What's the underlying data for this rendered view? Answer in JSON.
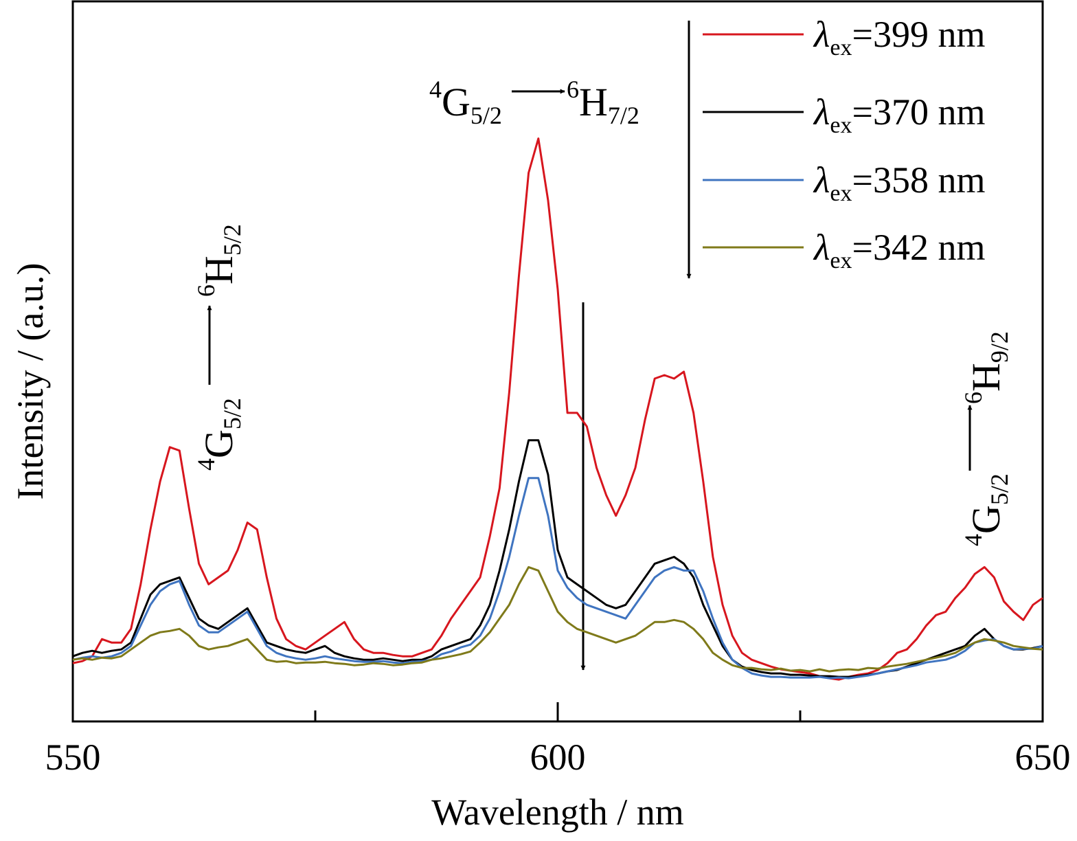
{
  "chart_data": {
    "type": "line",
    "xlabel": "Wavelength / nm",
    "ylabel": "Intensity / (a.u.)",
    "xlim": [
      550,
      650
    ],
    "xticks": [
      550,
      600,
      650
    ],
    "xminor_ticks": [
      575,
      625
    ],
    "ylim": [
      0,
      105
    ],
    "legend": "upper right",
    "x": [
      550,
      551,
      552,
      553,
      554,
      555,
      556,
      557,
      558,
      559,
      560,
      561,
      562,
      563,
      564,
      565,
      566,
      567,
      568,
      569,
      570,
      571,
      572,
      573,
      574,
      575,
      576,
      577,
      578,
      579,
      580,
      581,
      582,
      583,
      584,
      585,
      586,
      587,
      588,
      589,
      590,
      591,
      592,
      593,
      594,
      595,
      596,
      597,
      598,
      599,
      600,
      601,
      602,
      603,
      604,
      605,
      606,
      607,
      608,
      609,
      610,
      611,
      612,
      613,
      614,
      615,
      616,
      617,
      618,
      619,
      620,
      621,
      622,
      623,
      624,
      625,
      626,
      627,
      628,
      629,
      630,
      631,
      632,
      633,
      634,
      635,
      636,
      637,
      638,
      639,
      640,
      641,
      642,
      643,
      644,
      645,
      646,
      647,
      648,
      649,
      650
    ],
    "series": [
      {
        "name": "λex=399 nm",
        "color": "#d7161e",
        "values": [
          8.5,
          8.8,
          9.5,
          12,
          11.5,
          11.5,
          13.5,
          20,
          28,
          35,
          40,
          39.5,
          31,
          23,
          20,
          21,
          22,
          25,
          29,
          28,
          21,
          15,
          12,
          11,
          10.5,
          11.5,
          12.5,
          13.5,
          14.5,
          12,
          10.5,
          10,
          10,
          9.7,
          9.5,
          9.5,
          10,
          10.5,
          12.5,
          15,
          17,
          19,
          21,
          27,
          34,
          48,
          65,
          80,
          85,
          76,
          63,
          45,
          45,
          43,
          37,
          33,
          30,
          33,
          37,
          44,
          50,
          50.5,
          50,
          51,
          45,
          35,
          24,
          17,
          12.5,
          10,
          9,
          8.5,
          8,
          7.6,
          7.4,
          7.2,
          7,
          6.6,
          6.3,
          6.1,
          6.5,
          6.8,
          7,
          7.5,
          8.5,
          10,
          10.5,
          12,
          14,
          15.5,
          16,
          18,
          19.5,
          21.5,
          22.5,
          21,
          17.5,
          16,
          14.8,
          17,
          18
        ]
      },
      {
        "name": "λex=370 nm",
        "color": "#000000",
        "values": [
          9.5,
          10,
          10.3,
          10,
          10.3,
          10.5,
          11.5,
          15,
          18.5,
          20,
          20.5,
          21,
          18,
          15,
          14,
          13.5,
          14.5,
          15.5,
          16.5,
          14,
          11.5,
          11,
          10.5,
          10.2,
          10,
          10.5,
          11,
          10,
          9.5,
          9.2,
          9,
          9,
          9.2,
          9,
          8.8,
          9,
          9,
          9.5,
          10.5,
          11,
          11.5,
          12,
          14,
          17,
          22,
          28,
          35,
          41,
          41,
          36,
          25,
          21,
          20,
          19,
          18,
          17,
          16.5,
          17,
          19,
          21,
          23,
          23.5,
          24,
          23,
          21,
          17,
          14,
          11,
          9,
          8,
          7.5,
          7.2,
          7,
          7,
          6.8,
          6.8,
          6.7,
          6.6,
          6.6,
          6.5,
          6.5,
          6.6,
          6.8,
          7,
          7.3,
          7.5,
          8,
          8.5,
          9,
          9.5,
          10,
          10.5,
          11,
          12.5,
          13.5,
          12,
          11,
          10.5,
          10.5,
          10.7,
          11
        ]
      },
      {
        "name": "λex=358 nm",
        "color": "#3f74c0",
        "values": [
          9,
          9.3,
          9.5,
          9.3,
          9.5,
          10,
          11,
          14,
          17,
          19,
          20,
          20.5,
          17,
          14,
          13,
          13,
          14,
          15,
          16,
          13.5,
          11,
          10,
          9.5,
          9.2,
          9,
          9.2,
          9.5,
          9.2,
          9,
          8.8,
          8.7,
          8.7,
          8.8,
          8.6,
          8.5,
          8.7,
          8.8,
          9,
          9.8,
          10.2,
          10.8,
          11.2,
          12.5,
          15,
          19,
          24,
          30,
          35.5,
          35.5,
          30,
          22,
          19.5,
          18,
          17,
          16.5,
          16,
          15.5,
          15,
          17,
          19,
          21,
          22,
          22.5,
          22,
          22,
          19,
          15,
          11.5,
          9,
          7.8,
          7,
          6.7,
          6.5,
          6.5,
          6.4,
          6.4,
          6.4,
          6.5,
          6.3,
          6.4,
          6.3,
          6.5,
          6.7,
          7,
          7.3,
          7.6,
          7.9,
          8.2,
          8.6,
          8.8,
          9,
          9.5,
          10.3,
          11.5,
          11.8,
          12,
          11,
          10.5,
          10.6,
          10.6,
          11
        ]
      },
      {
        "name": "λex=342 nm",
        "color": "#7f7a1a",
        "values": [
          9,
          9.2,
          9,
          9.3,
          9.2,
          9.5,
          10.5,
          11.5,
          12.5,
          13,
          13.2,
          13.5,
          12.5,
          11,
          10.5,
          10.8,
          11,
          11.5,
          12,
          10.5,
          9,
          8.7,
          8.8,
          8.5,
          8.6,
          8.6,
          8.7,
          8.5,
          8.4,
          8.2,
          8.3,
          8.5,
          8.4,
          8.2,
          8.3,
          8.5,
          8.6,
          9,
          9.2,
          9.5,
          9.8,
          10.2,
          11.5,
          13,
          15,
          17,
          20,
          22.5,
          22,
          19,
          16,
          14.5,
          13.5,
          13,
          12.5,
          12,
          11.5,
          12,
          12.5,
          13.5,
          14.5,
          14.5,
          14.8,
          14.5,
          13.5,
          12,
          10,
          9,
          8.2,
          7.8,
          7.8,
          7.6,
          7.5,
          7.7,
          7.4,
          7.5,
          7.3,
          7.6,
          7.3,
          7.5,
          7.6,
          7.5,
          7.8,
          7.7,
          8,
          8.2,
          8.4,
          8.7,
          9,
          9.3,
          9.6,
          10,
          10.8,
          11.5,
          12,
          11.8,
          11.5,
          11,
          10.8,
          10.6,
          10.5
        ]
      }
    ],
    "annotations": [
      {
        "from": {
          "sup": "4",
          "term": "G",
          "sub": "5/2"
        },
        "to": {
          "sup": "6",
          "term": "H",
          "sub": "7/2"
        }
      },
      {
        "from": {
          "sup": "4",
          "term": "G",
          "sub": "5/2"
        },
        "to": {
          "sup": "6",
          "term": "H",
          "sub": "5/2"
        }
      },
      {
        "from": {
          "sup": "4",
          "term": "G",
          "sub": "5/2"
        },
        "to": {
          "sup": "6",
          "term": "H",
          "sub": "9/2"
        }
      }
    ]
  }
}
